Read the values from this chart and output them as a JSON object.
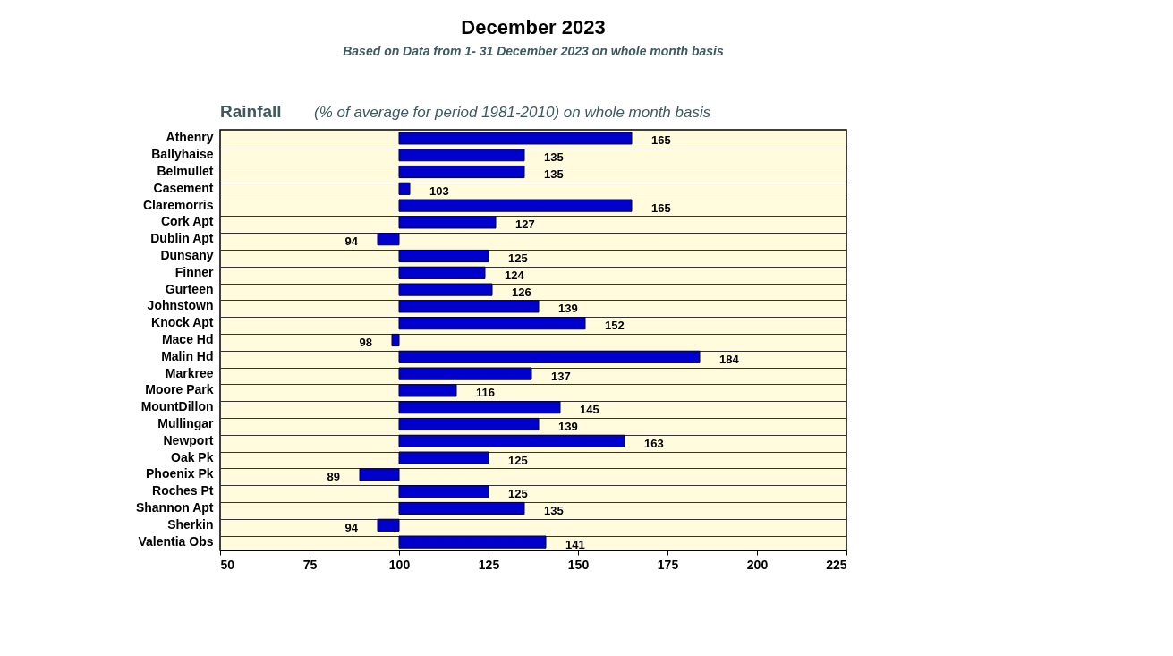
{
  "chart_data": {
    "type": "bar",
    "orientation": "horizontal",
    "title": "December 2023",
    "subtitle": "Based on Data from 1- 31 December 2023 on whole month basis",
    "annotations": [
      "Rainfall",
      "(% of average for period 1981-2010) on whole month basis"
    ],
    "categories": [
      "Athenry",
      "Ballyhaise",
      "Belmullet",
      "Casement",
      "Claremorris",
      "Cork Apt",
      "Dublin Apt",
      "Dunsany",
      "Finner",
      "Gurteen",
      "Johnstown",
      "Knock Apt",
      "Mace Hd",
      "Malin Hd",
      "Markree",
      "Moore Park",
      "MountDillon",
      "Mullingar",
      "Newport",
      "Oak Pk",
      "Phoenix Pk",
      "Roches Pt",
      "Shannon Apt",
      "Sherkin",
      "Valentia Obs"
    ],
    "base": [
      100,
      100,
      100,
      100,
      100,
      100,
      100,
      100,
      100,
      100,
      100,
      100,
      100,
      100,
      100,
      100,
      100,
      100,
      100,
      100,
      100,
      100,
      100,
      100,
      100
    ],
    "values": [
      65,
      35,
      35,
      3,
      65,
      27,
      -6,
      25,
      24,
      26,
      39,
      52,
      -2,
      84,
      37,
      16,
      45,
      39,
      63,
      25,
      -11,
      25,
      35,
      -6,
      41
    ],
    "value_labels": [
      "165",
      "135",
      "135",
      "103",
      "165",
      "127",
      "94",
      "125",
      "124",
      "126",
      "139",
      "152",
      "98",
      "184",
      "137",
      "116",
      "145",
      "139",
      "163",
      "125",
      "89",
      "125",
      "135",
      "94",
      "141"
    ],
    "color": "#0000cc",
    "xlim": [
      50,
      225
    ],
    "xticks": [
      50,
      75,
      100,
      125,
      150,
      175,
      200,
      225
    ],
    "grid": "y"
  }
}
